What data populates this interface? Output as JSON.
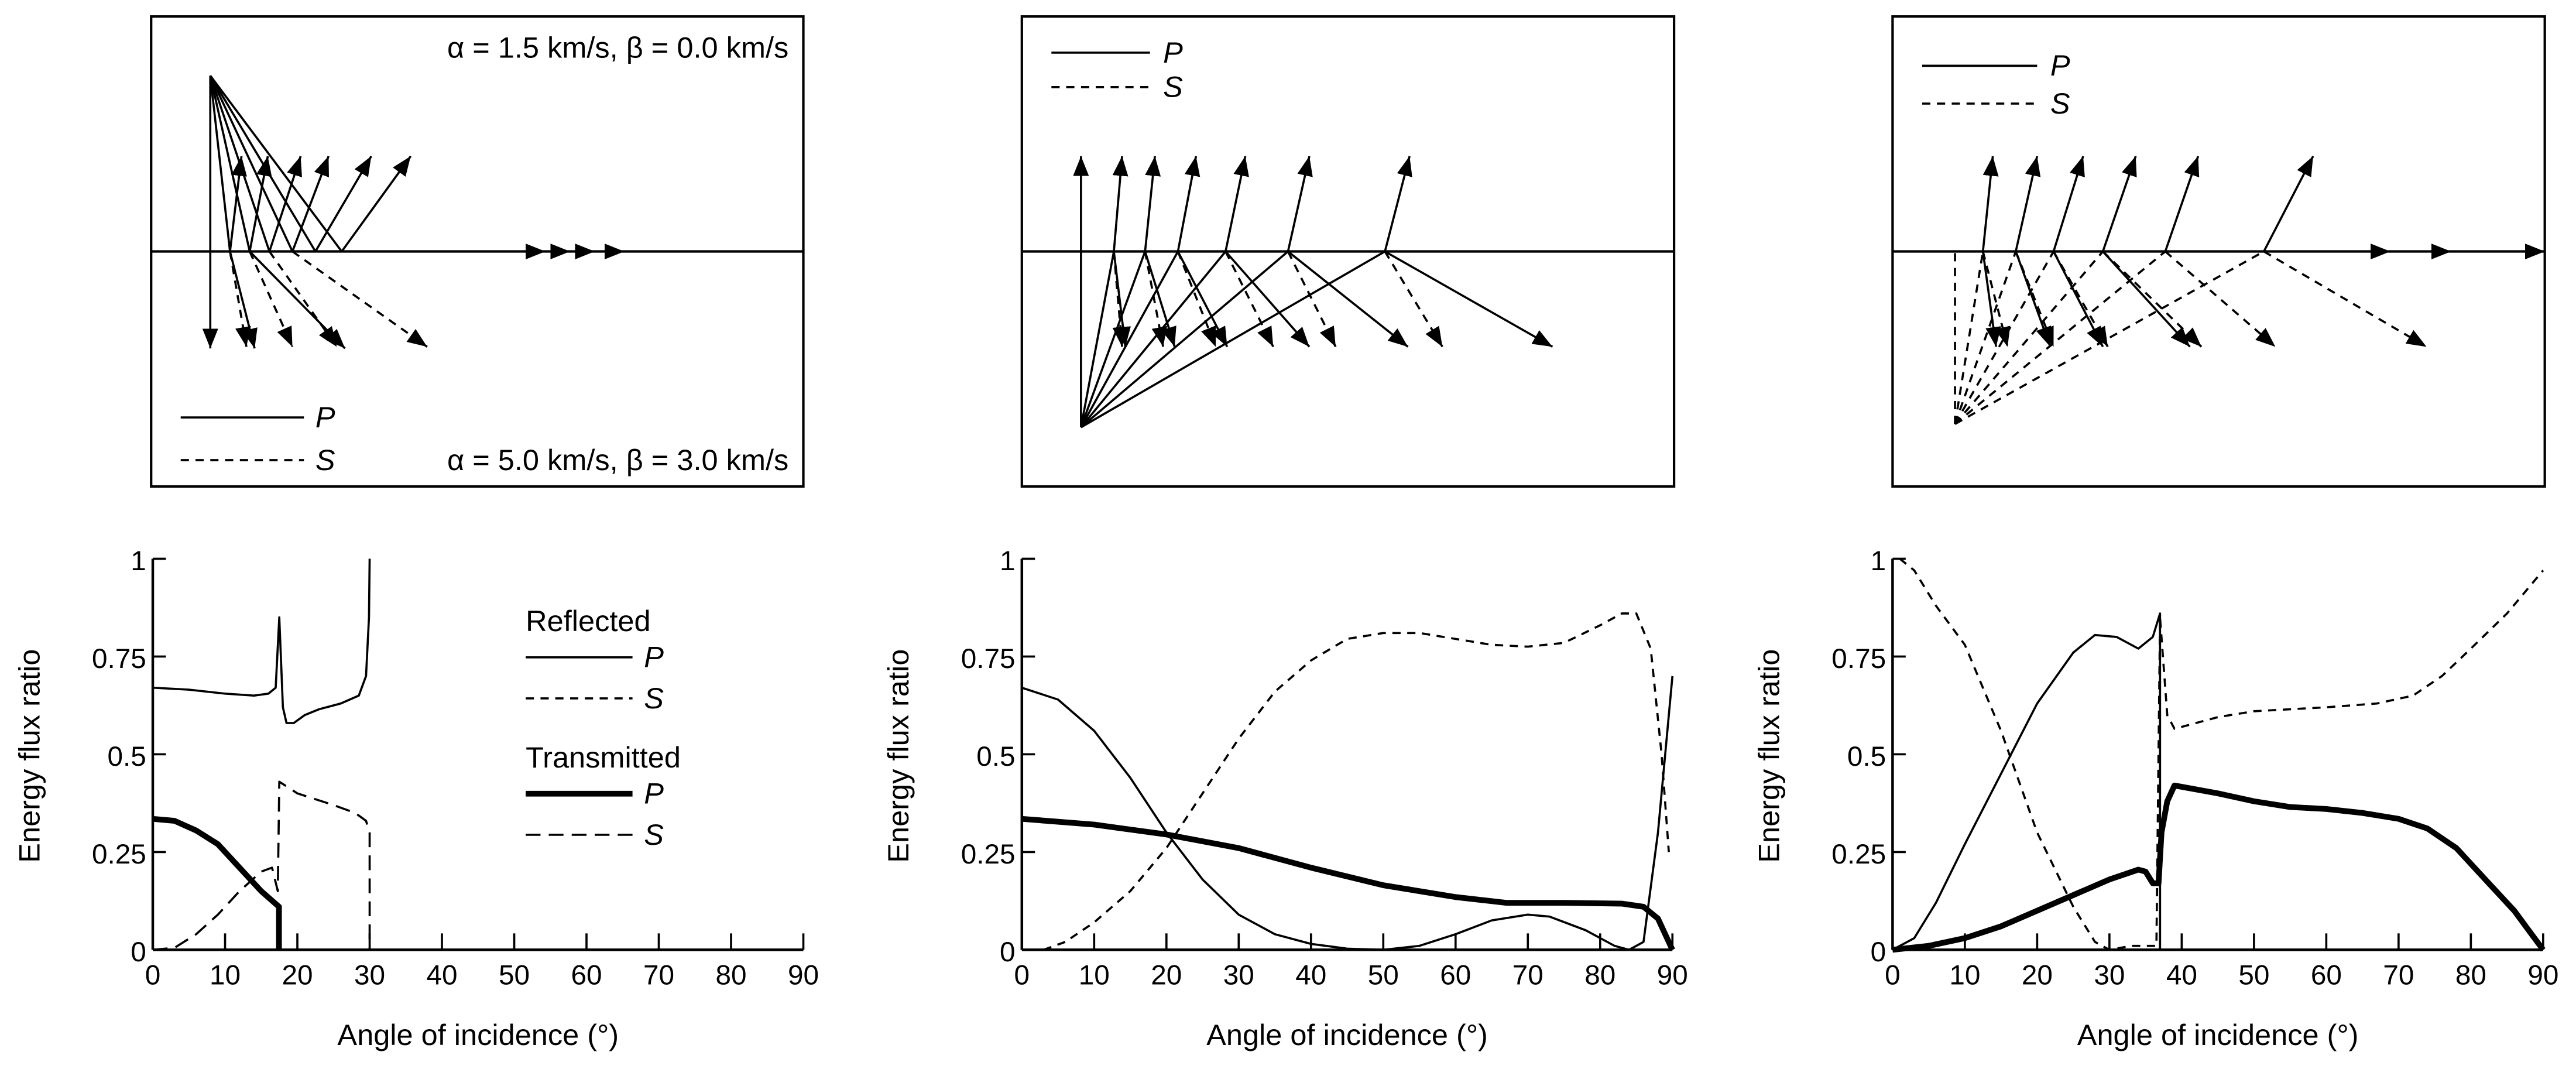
{
  "legend": {
    "reflected": "Reflected",
    "transmitted": "Transmitted",
    "p": "P",
    "s": "S"
  },
  "diagrams": [
    {
      "upper_medium": "α = 1.5 km/s, β = 0.0 km/s",
      "lower_medium": "α = 5.0 km/s, β = 3.0 km/s",
      "legend_p": "P",
      "legend_s": "S"
    },
    {
      "legend_p": "P",
      "legend_s": "S"
    },
    {
      "legend_p": "P",
      "legend_s": "S"
    }
  ],
  "chart_data": [
    {
      "type": "line",
      "title": "",
      "xlabel": "Angle of incidence (°)",
      "ylabel": "Energy flux ratio",
      "xlim": [
        0,
        90
      ],
      "ylim": [
        0,
        1
      ],
      "xticks": [
        "0",
        "10",
        "20",
        "30",
        "40",
        "50",
        "60",
        "70",
        "80",
        "90"
      ],
      "yticks": [
        "0",
        "0.25",
        "0.5",
        "0.75",
        "1"
      ],
      "legend_position": "right",
      "series": [
        {
          "name": "Reflected P",
          "style": "thin-solid",
          "points": [
            [
              0,
              0.67
            ],
            [
              5,
              0.665
            ],
            [
              10,
              0.655
            ],
            [
              14,
              0.65
            ],
            [
              16,
              0.655
            ],
            [
              17,
              0.67
            ],
            [
              17.5,
              0.85
            ],
            [
              18,
              0.62
            ],
            [
              18.5,
              0.58
            ],
            [
              19.5,
              0.58
            ],
            [
              21,
              0.6
            ],
            [
              23,
              0.615
            ],
            [
              26,
              0.63
            ],
            [
              28.5,
              0.65
            ],
            [
              29.5,
              0.7
            ],
            [
              29.9,
              0.85
            ],
            [
              30,
              1.0
            ]
          ]
        },
        {
          "name": "Transmitted P",
          "style": "thick-solid",
          "points": [
            [
              0,
              0.335
            ],
            [
              3,
              0.33
            ],
            [
              6,
              0.305
            ],
            [
              9,
              0.27
            ],
            [
              12,
              0.21
            ],
            [
              15,
              0.15
            ],
            [
              17.46,
              0.11
            ],
            [
              17.46,
              0
            ]
          ]
        },
        {
          "name": "Transmitted S",
          "style": "long-dash",
          "points": [
            [
              0,
              0
            ],
            [
              3,
              0.005
            ],
            [
              6,
              0.04
            ],
            [
              9,
              0.09
            ],
            [
              12,
              0.15
            ],
            [
              15,
              0.2
            ],
            [
              16.5,
              0.21
            ],
            [
              17.3,
              0.15
            ],
            [
              17.5,
              0.43
            ],
            [
              20,
              0.4
            ],
            [
              25,
              0.37
            ],
            [
              28,
              0.35
            ],
            [
              29.5,
              0.33
            ],
            [
              30,
              0.3
            ],
            [
              30,
              0
            ]
          ]
        }
      ]
    },
    {
      "type": "line",
      "title": "",
      "xlabel": "Angle of incidence (°)",
      "ylabel": "Energy flux ratio",
      "xlim": [
        0,
        90
      ],
      "ylim": [
        0,
        1
      ],
      "xticks": [
        "0",
        "10",
        "20",
        "30",
        "40",
        "50",
        "60",
        "70",
        "80",
        "90"
      ],
      "yticks": [
        "0",
        "0.25",
        "0.5",
        "0.75",
        "1"
      ],
      "series": [
        {
          "name": "Reflected P",
          "style": "thin-solid",
          "points": [
            [
              0,
              0.67
            ],
            [
              5,
              0.64
            ],
            [
              10,
              0.56
            ],
            [
              15,
              0.44
            ],
            [
              20,
              0.3
            ],
            [
              25,
              0.18
            ],
            [
              30,
              0.09
            ],
            [
              35,
              0.04
            ],
            [
              40,
              0.015
            ],
            [
              45,
              0.003
            ],
            [
              50,
              0
            ],
            [
              55,
              0.01
            ],
            [
              60,
              0.04
            ],
            [
              65,
              0.075
            ],
            [
              70,
              0.09
            ],
            [
              73,
              0.085
            ],
            [
              78,
              0.05
            ],
            [
              82,
              0.01
            ],
            [
              84,
              0
            ],
            [
              86,
              0.02
            ],
            [
              88,
              0.3
            ],
            [
              90,
              0.7
            ]
          ]
        },
        {
          "name": "Reflected S",
          "style": "short-dash",
          "points": [
            [
              3,
              0
            ],
            [
              6,
              0.02
            ],
            [
              10,
              0.07
            ],
            [
              15,
              0.15
            ],
            [
              20,
              0.26
            ],
            [
              25,
              0.4
            ],
            [
              30,
              0.54
            ],
            [
              35,
              0.66
            ],
            [
              40,
              0.74
            ],
            [
              45,
              0.795
            ],
            [
              50,
              0.81
            ],
            [
              55,
              0.81
            ],
            [
              60,
              0.795
            ],
            [
              65,
              0.78
            ],
            [
              70,
              0.775
            ],
            [
              75,
              0.785
            ],
            [
              80,
              0.83
            ],
            [
              83,
              0.86
            ],
            [
              85,
              0.86
            ],
            [
              87,
              0.77
            ],
            [
              88.5,
              0.5
            ],
            [
              89.5,
              0.25
            ]
          ]
        },
        {
          "name": "Transmitted P",
          "style": "thick-solid",
          "points": [
            [
              0,
              0.335
            ],
            [
              10,
              0.32
            ],
            [
              20,
              0.295
            ],
            [
              30,
              0.26
            ],
            [
              40,
              0.21
            ],
            [
              50,
              0.165
            ],
            [
              60,
              0.135
            ],
            [
              67,
              0.12
            ],
            [
              75,
              0.12
            ],
            [
              83,
              0.118
            ],
            [
              86,
              0.11
            ],
            [
              88,
              0.08
            ],
            [
              90,
              0
            ]
          ]
        }
      ]
    },
    {
      "type": "line",
      "title": "",
      "xlabel": "Angle of incidence (°)",
      "ylabel": "Energy flux ratio",
      "xlim": [
        0,
        90
      ],
      "ylim": [
        0,
        1
      ],
      "xticks": [
        "0",
        "10",
        "20",
        "30",
        "40",
        "50",
        "60",
        "70",
        "80",
        "90"
      ],
      "yticks": [
        "0",
        "0.25",
        "0.5",
        "0.75",
        "1"
      ],
      "series": [
        {
          "name": "Reflected P",
          "style": "thin-solid",
          "points": [
            [
              0,
              0
            ],
            [
              3,
              0.03
            ],
            [
              6,
              0.12
            ],
            [
              10,
              0.27
            ],
            [
              15,
              0.45
            ],
            [
              20,
              0.63
            ],
            [
              25,
              0.76
            ],
            [
              28,
              0.805
            ],
            [
              31,
              0.8
            ],
            [
              34,
              0.77
            ],
            [
              36,
              0.8
            ],
            [
              37,
              0.86
            ],
            [
              37,
              0
            ]
          ]
        },
        {
          "name": "Reflected S",
          "style": "short-dash",
          "points": [
            [
              1,
              1
            ],
            [
              3,
              0.97
            ],
            [
              6,
              0.88
            ],
            [
              10,
              0.78
            ],
            [
              15,
              0.56
            ],
            [
              20,
              0.3
            ],
            [
              25,
              0.11
            ],
            [
              28,
              0.02
            ],
            [
              30,
              0
            ],
            [
              33,
              0.01
            ],
            [
              36.5,
              0.01
            ],
            [
              37,
              0.85
            ],
            [
              38,
              0.6
            ],
            [
              39,
              0.565
            ],
            [
              45,
              0.595
            ],
            [
              50,
              0.61
            ],
            [
              60,
              0.62
            ],
            [
              67,
              0.63
            ],
            [
              72,
              0.65
            ],
            [
              76,
              0.7
            ],
            [
              80,
              0.77
            ],
            [
              85,
              0.86
            ],
            [
              90,
              0.97
            ]
          ]
        },
        {
          "name": "Transmitted P",
          "style": "thick-solid",
          "points": [
            [
              0,
              0
            ],
            [
              5,
              0.01
            ],
            [
              10,
              0.03
            ],
            [
              15,
              0.06
            ],
            [
              20,
              0.1
            ],
            [
              25,
              0.14
            ],
            [
              30,
              0.18
            ],
            [
              34,
              0.205
            ],
            [
              35,
              0.2
            ],
            [
              36,
              0.17
            ],
            [
              36.8,
              0.17
            ],
            [
              37.2,
              0.3
            ],
            [
              38,
              0.38
            ],
            [
              39,
              0.42
            ],
            [
              45,
              0.4
            ],
            [
              50,
              0.38
            ],
            [
              55,
              0.365
            ],
            [
              60,
              0.36
            ],
            [
              65,
              0.35
            ],
            [
              70,
              0.335
            ],
            [
              74,
              0.31
            ],
            [
              78,
              0.26
            ],
            [
              82,
              0.18
            ],
            [
              86,
              0.1
            ],
            [
              90,
              0
            ]
          ]
        }
      ]
    }
  ]
}
